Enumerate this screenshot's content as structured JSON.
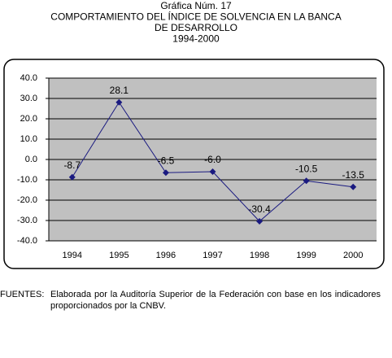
{
  "chart_data": {
    "type": "line",
    "title_lines": [
      "Gráfica Núm. 17",
      "COMPORTAMIENTO DEL ÍNDICE DE SOLVENCIA EN LA BANCA",
      "DE DESARROLLO",
      "1994-2000"
    ],
    "categories": [
      "1994",
      "1995",
      "1996",
      "1997",
      "1998",
      "1999",
      "2000"
    ],
    "series": [
      {
        "color": "#1a1a80",
        "values": [
          -8.7,
          28.1,
          -6.5,
          -6.0,
          -30.4,
          -10.5,
          -13.5
        ],
        "value_labels": [
          "-8.7",
          "28.1",
          "-6.5",
          "-6.0",
          "-30.4",
          "-10.5",
          "-13.5"
        ]
      }
    ],
    "ylim": [
      -40,
      40
    ],
    "yticks": [
      {
        "value": 40,
        "label": "40.0"
      },
      {
        "value": 30,
        "label": "30.0"
      },
      {
        "value": 20,
        "label": "20.0"
      },
      {
        "value": 10,
        "label": "10.0"
      },
      {
        "value": 0,
        "label": "0.0"
      },
      {
        "value": -10,
        "label": "-10.0"
      },
      {
        "value": -20,
        "label": "-20.0"
      },
      {
        "value": -30,
        "label": "-30.0"
      },
      {
        "value": -40,
        "label": "-40.0"
      }
    ],
    "grid": true,
    "footnote": {
      "label": "FUENTES:",
      "text": "Elaborada por la Auditoría Superior de la Federación con base en los indicadores proporcionados por la CNBV."
    }
  }
}
